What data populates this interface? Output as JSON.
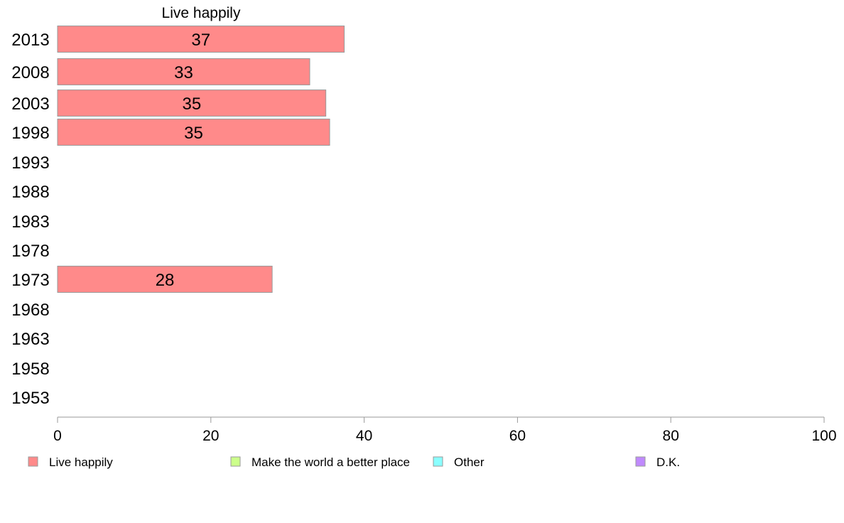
{
  "chart_data": {
    "type": "bar",
    "orientation": "horizontal",
    "title": "Live happily",
    "categories": [
      "2013",
      "2008",
      "2003",
      "1998",
      "1993",
      "1988",
      "1983",
      "1978",
      "1973",
      "1968",
      "1963",
      "1958",
      "1953"
    ],
    "series": [
      {
        "name": "Live happily",
        "color": "#ff8a8a",
        "values": [
          37.4,
          32.9,
          35.0,
          35.5,
          null,
          null,
          null,
          null,
          28.0,
          null,
          null,
          null,
          null
        ],
        "labels": [
          "37",
          "33",
          "35",
          "35",
          "",
          "",
          "",
          "",
          "28",
          "",
          "",
          "",
          ""
        ]
      }
    ],
    "xlim": [
      0,
      100
    ],
    "xticks": [
      "0",
      "20",
      "40",
      "60",
      "80",
      "100"
    ],
    "grid": false,
    "legend": {
      "placement": "bottom",
      "entries": [
        {
          "label": "Live happily",
          "color": "#ff8a8a"
        },
        {
          "label": "Make the world a better place",
          "color": "#ccff8a"
        },
        {
          "label": "Other",
          "color": "#8affff"
        },
        {
          "label": "D.K.",
          "color": "#c08aff"
        }
      ]
    }
  }
}
